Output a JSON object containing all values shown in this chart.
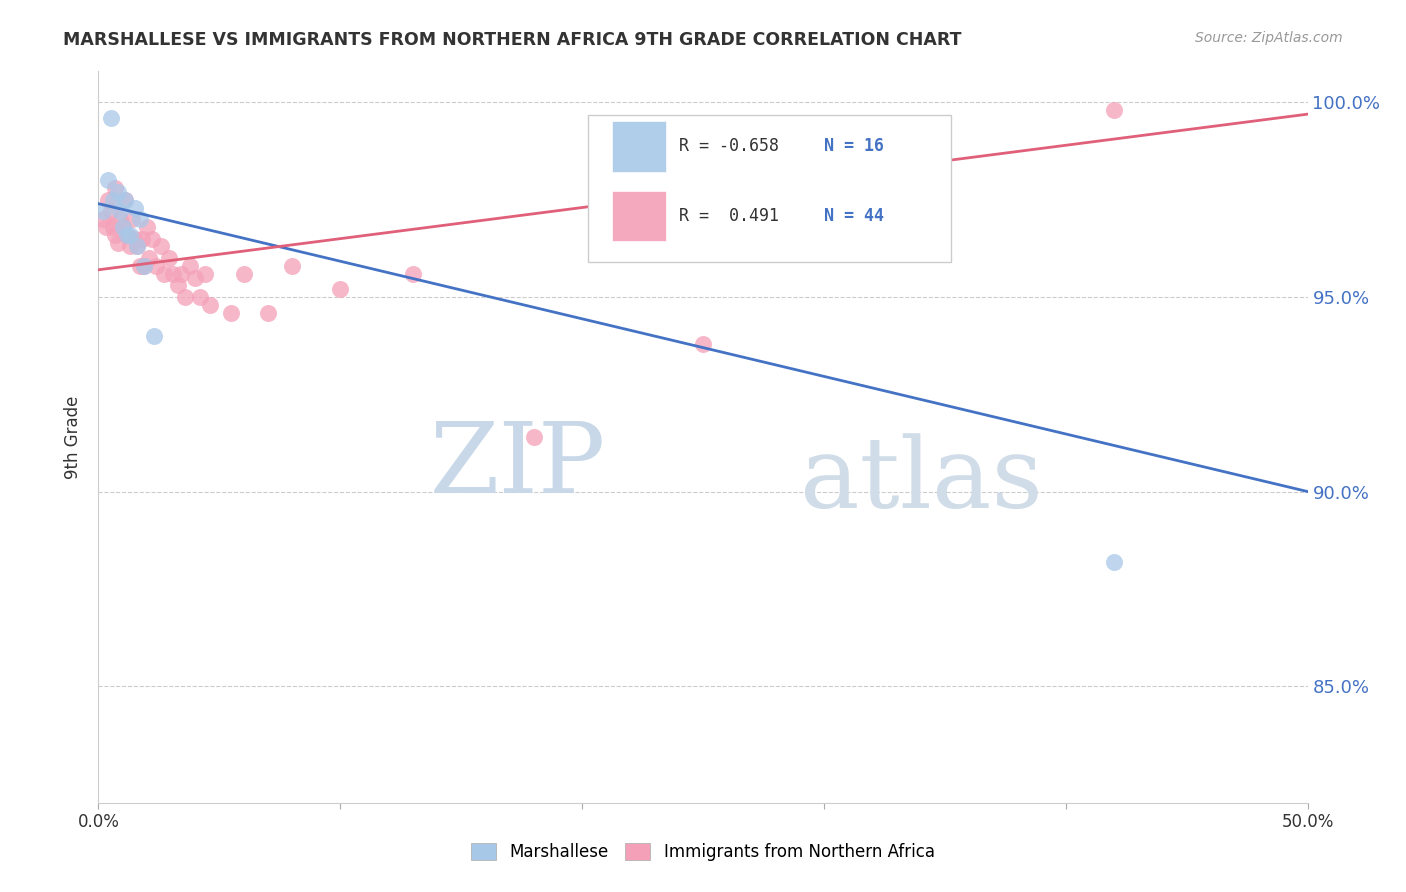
{
  "title": "MARSHALLESE VS IMMIGRANTS FROM NORTHERN AFRICA 9TH GRADE CORRELATION CHART",
  "source": "Source: ZipAtlas.com",
  "ylabel": "9th Grade",
  "xlim": [
    0.0,
    0.5
  ],
  "ylim": [
    0.82,
    1.008
  ],
  "yticks": [
    0.85,
    0.9,
    0.95,
    1.0
  ],
  "ytick_labels": [
    "85.0%",
    "90.0%",
    "95.0%",
    "100.0%"
  ],
  "xticks": [
    0.0,
    0.1,
    0.2,
    0.3,
    0.4,
    0.5
  ],
  "xtick_labels": [
    "0.0%",
    "",
    "",
    "",
    "",
    "50.0%"
  ],
  "blue_color": "#a8c8e8",
  "pink_color": "#f4a0b8",
  "blue_line_color": "#4472c4",
  "pink_line_color": "#e0607a",
  "legend_blue_r": "R = -0.658",
  "legend_blue_n": "N = 16",
  "legend_pink_r": "R =  0.491",
  "legend_pink_n": "N = 44",
  "watermark_zip": "ZIP",
  "watermark_atlas": "atlas",
  "blue_line_x": [
    0.0,
    0.5
  ],
  "blue_line_y": [
    0.974,
    0.9
  ],
  "pink_line_x": [
    0.0,
    0.5
  ],
  "pink_line_y": [
    0.957,
    0.997
  ],
  "marshallese_x": [
    0.002,
    0.004,
    0.005,
    0.006,
    0.008,
    0.009,
    0.01,
    0.011,
    0.012,
    0.013,
    0.015,
    0.016,
    0.017,
    0.019,
    0.023,
    0.42
  ],
  "marshallese_y": [
    0.972,
    0.98,
    0.996,
    0.975,
    0.977,
    0.972,
    0.968,
    0.975,
    0.966,
    0.966,
    0.973,
    0.963,
    0.97,
    0.958,
    0.94,
    0.882
  ],
  "pink_x": [
    0.002,
    0.003,
    0.004,
    0.005,
    0.006,
    0.007,
    0.007,
    0.008,
    0.009,
    0.01,
    0.011,
    0.012,
    0.013,
    0.014,
    0.015,
    0.016,
    0.017,
    0.018,
    0.019,
    0.02,
    0.021,
    0.022,
    0.024,
    0.026,
    0.027,
    0.029,
    0.031,
    0.033,
    0.034,
    0.036,
    0.038,
    0.04,
    0.042,
    0.044,
    0.046,
    0.055,
    0.06,
    0.07,
    0.08,
    0.1,
    0.13,
    0.18,
    0.25,
    0.42
  ],
  "pink_y": [
    0.97,
    0.968,
    0.975,
    0.972,
    0.968,
    0.978,
    0.966,
    0.964,
    0.97,
    0.968,
    0.975,
    0.966,
    0.963,
    0.97,
    0.965,
    0.963,
    0.958,
    0.965,
    0.958,
    0.968,
    0.96,
    0.965,
    0.958,
    0.963,
    0.956,
    0.96,
    0.956,
    0.953,
    0.956,
    0.95,
    0.958,
    0.955,
    0.95,
    0.956,
    0.948,
    0.946,
    0.956,
    0.946,
    0.958,
    0.952,
    0.956,
    0.914,
    0.938,
    0.998
  ]
}
